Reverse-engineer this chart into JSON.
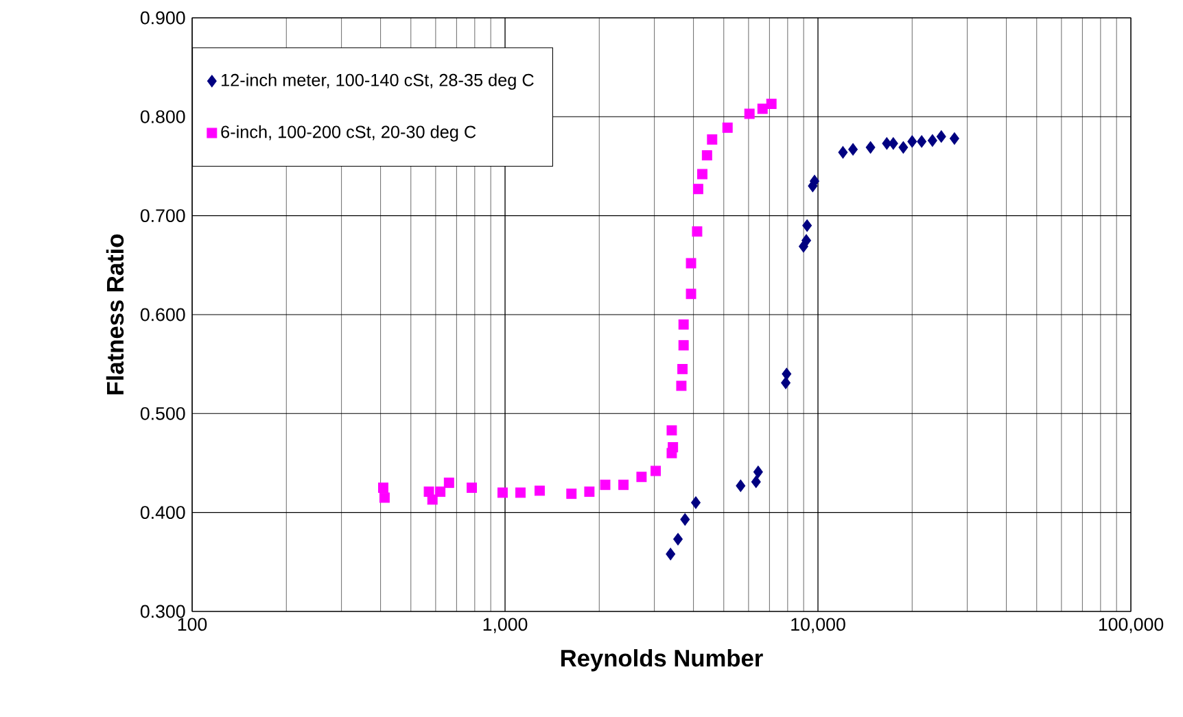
{
  "chart_data": {
    "type": "scatter",
    "xlabel": "Reynolds Number",
    "ylabel": "Flatness Ratio",
    "log": "x",
    "grid": true,
    "legend": "top left",
    "xlim": [
      100,
      100000
    ],
    "ylim": [
      0.3,
      0.9
    ],
    "xticks": [
      {
        "value": 100,
        "label": "100"
      },
      {
        "value": 1000,
        "label": "1,000"
      },
      {
        "value": 10000,
        "label": "10,000"
      },
      {
        "value": 100000,
        "label": "100,000"
      }
    ],
    "yticks": [
      {
        "value": 0.3,
        "label": "0.300"
      },
      {
        "value": 0.4,
        "label": "0.400"
      },
      {
        "value": 0.5,
        "label": "0.500"
      },
      {
        "value": 0.6,
        "label": "0.600"
      },
      {
        "value": 0.7,
        "label": "0.700"
      },
      {
        "value": 0.8,
        "label": "0.800"
      },
      {
        "value": 0.9,
        "label": "0.900"
      }
    ],
    "series": [
      {
        "name": "12-inch meter, 100-140 cSt, 28-35 deg C",
        "color": "#000080",
        "marker": "diamond",
        "x": [
          3380,
          3570,
          3760,
          4070,
          5660,
          6340,
          6440,
          7890,
          7940,
          8990,
          9180,
          9230,
          9620,
          9750,
          12020,
          12940,
          14720,
          16600,
          17410,
          18740,
          20000,
          21450,
          23220,
          24780,
          27300
        ],
        "values": [
          0.358,
          0.373,
          0.393,
          0.41,
          0.427,
          0.431,
          0.441,
          0.531,
          0.54,
          0.669,
          0.675,
          0.69,
          0.73,
          0.735,
          0.764,
          0.767,
          0.769,
          0.773,
          0.773,
          0.769,
          0.775,
          0.775,
          0.776,
          0.78,
          0.778
        ]
      },
      {
        "name": "6-inch, 100-200 cSt, 20-30 deg C",
        "color": "#ff00ff",
        "marker": "square",
        "x": [
          408,
          412,
          571,
          586,
          621,
          662,
          783,
          982,
          1120,
          1290,
          1630,
          1860,
          2090,
          2390,
          2730,
          3030,
          3410,
          3410,
          3440,
          3660,
          3690,
          3720,
          3720,
          3930,
          3930,
          4110,
          4140,
          4270,
          4420,
          4590,
          5140,
          6040,
          6650,
          7100
        ],
        "values": [
          0.425,
          0.415,
          0.421,
          0.413,
          0.421,
          0.43,
          0.425,
          0.42,
          0.42,
          0.422,
          0.419,
          0.421,
          0.428,
          0.428,
          0.436,
          0.442,
          0.483,
          0.46,
          0.466,
          0.528,
          0.545,
          0.569,
          0.59,
          0.621,
          0.652,
          0.684,
          0.727,
          0.742,
          0.761,
          0.777,
          0.789,
          0.803,
          0.808,
          0.813
        ]
      }
    ]
  }
}
